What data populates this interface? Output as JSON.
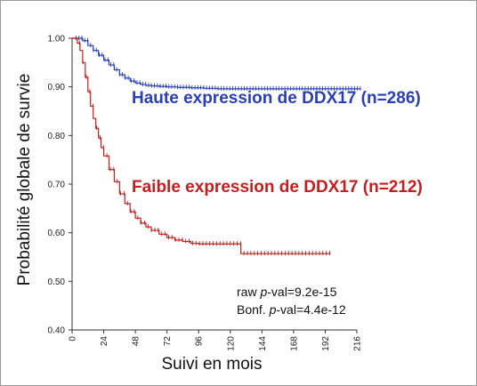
{
  "chart_data": {
    "type": "line",
    "xlabel": "Suivi en mois",
    "ylabel": "Probabilité globale de survie",
    "xlim": [
      0,
      216
    ],
    "ylim": [
      0.4,
      1.0
    ],
    "x_ticks": [
      "0",
      "24",
      "48",
      "72",
      "96",
      "120",
      "144",
      "168",
      "192",
      "216"
    ],
    "y_ticks": [
      "1.00",
      "0.90",
      "0.80",
      "0.70",
      "0.60",
      "0.50",
      "0.40"
    ],
    "grid": false,
    "series": [
      {
        "name": "Haute expression de DDX17 (n=286)",
        "color": "#2a3fb5",
        "x": [
          0,
          4,
          8,
          12,
          16,
          20,
          24,
          28,
          32,
          36,
          40,
          44,
          48,
          52,
          56,
          60,
          66,
          72,
          80,
          90,
          100,
          110,
          120,
          144,
          168,
          192,
          219
        ],
        "y": [
          1.0,
          1.0,
          0.995,
          0.985,
          0.975,
          0.965,
          0.955,
          0.945,
          0.935,
          0.925,
          0.918,
          0.912,
          0.908,
          0.905,
          0.903,
          0.902,
          0.901,
          0.9,
          0.899,
          0.898,
          0.897,
          0.896,
          0.896,
          0.896,
          0.896,
          0.896,
          0.896
        ]
      },
      {
        "name": "Faible expression de DDX17 (n=212)",
        "color": "#c41e1e",
        "x": [
          0,
          2,
          4,
          6,
          8,
          10,
          12,
          14,
          16,
          18,
          20,
          22,
          24,
          28,
          32,
          36,
          40,
          44,
          48,
          52,
          56,
          60,
          66,
          72,
          78,
          84,
          90,
          96,
          108,
          120,
          128,
          144,
          168,
          196
        ],
        "y": [
          1.0,
          1.0,
          0.99,
          0.975,
          0.95,
          0.92,
          0.89,
          0.86,
          0.835,
          0.815,
          0.795,
          0.775,
          0.758,
          0.73,
          0.705,
          0.68,
          0.66,
          0.643,
          0.63,
          0.62,
          0.612,
          0.605,
          0.597,
          0.59,
          0.585,
          0.582,
          0.578,
          0.577,
          0.577,
          0.577,
          0.557,
          0.557,
          0.557,
          0.557
        ]
      }
    ],
    "annotations": [
      {
        "text": "Haute expression de DDX17 (n=286)",
        "color": "#2a3fb5"
      },
      {
        "text": "Faible expression de DDX17 (n=212)",
        "color": "#c41e1e"
      },
      {
        "text": "raw p-val=9.2e-15"
      },
      {
        "text": "Bonf. p-val=4.4e-12"
      }
    ]
  },
  "stats": {
    "raw_prefix": "raw ",
    "raw_italic": "p",
    "raw_suffix": "-val=9.2e-15",
    "bonf_prefix": "Bonf. ",
    "bonf_italic": "p",
    "bonf_suffix": "-val=4.4e-12"
  },
  "colors": {
    "high": "#2a3fb5",
    "low": "#c41e1e",
    "axis": "#333333"
  }
}
